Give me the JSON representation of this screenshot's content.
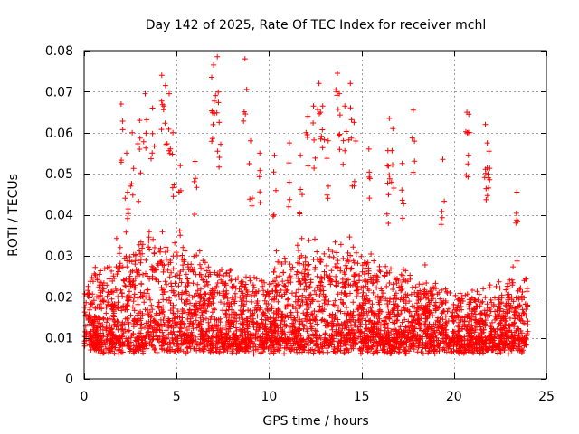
{
  "chart_data": {
    "type": "scatter",
    "title": "Day 142 of 2025, Rate Of TEC Index for receiver mchl",
    "xlabel": "GPS time / hours",
    "ylabel": "ROTI / TECUs",
    "xlim": [
      0,
      25
    ],
    "ylim": [
      0,
      0.08
    ],
    "x_ticks": [
      "0",
      "5",
      "10",
      "15",
      "20",
      "25"
    ],
    "y_ticks": [
      "0",
      "0.01",
      "0.02",
      "0.03",
      "0.04",
      "0.05",
      "0.06",
      "0.07",
      "0.08"
    ],
    "grid": true,
    "marker": "+",
    "color": "#ff0000",
    "series": [
      {
        "name": "ROTI",
        "summary": "dense band of points between 0.005 and 0.03 across 0-24 h; sporadic spikes",
        "baseline_range": [
          0.004,
          0.03
        ],
        "hour_span": [
          0,
          24
        ],
        "spikes": [
          {
            "x": 2.0,
            "y": 0.067
          },
          {
            "x": 2.3,
            "y": 0.055
          },
          {
            "x": 2.6,
            "y": 0.06
          },
          {
            "x": 3.0,
            "y": 0.063
          },
          {
            "x": 3.3,
            "y": 0.0695
          },
          {
            "x": 3.7,
            "y": 0.066
          },
          {
            "x": 4.2,
            "y": 0.074
          },
          {
            "x": 4.4,
            "y": 0.0715
          },
          {
            "x": 4.6,
            "y": 0.0695
          },
          {
            "x": 4.8,
            "y": 0.06
          },
          {
            "x": 5.2,
            "y": 0.052
          },
          {
            "x": 6.0,
            "y": 0.053
          },
          {
            "x": 6.9,
            "y": 0.0735
          },
          {
            "x": 7.0,
            "y": 0.0765
          },
          {
            "x": 7.2,
            "y": 0.0785
          },
          {
            "x": 7.3,
            "y": 0.0625
          },
          {
            "x": 8.7,
            "y": 0.078
          },
          {
            "x": 9.0,
            "y": 0.058
          },
          {
            "x": 9.5,
            "y": 0.055
          },
          {
            "x": 10.3,
            "y": 0.0545
          },
          {
            "x": 11.1,
            "y": 0.0575
          },
          {
            "x": 11.7,
            "y": 0.0545
          },
          {
            "x": 12.1,
            "y": 0.064
          },
          {
            "x": 12.4,
            "y": 0.0665
          },
          {
            "x": 12.7,
            "y": 0.072
          },
          {
            "x": 12.9,
            "y": 0.0665
          },
          {
            "x": 13.2,
            "y": 0.058
          },
          {
            "x": 13.7,
            "y": 0.0745
          },
          {
            "x": 13.8,
            "y": 0.0695
          },
          {
            "x": 14.1,
            "y": 0.0665
          },
          {
            "x": 14.4,
            "y": 0.072
          },
          {
            "x": 14.6,
            "y": 0.0625
          },
          {
            "x": 15.4,
            "y": 0.056
          },
          {
            "x": 16.4,
            "y": 0.052
          },
          {
            "x": 16.5,
            "y": 0.0635
          },
          {
            "x": 16.7,
            "y": 0.061
          },
          {
            "x": 17.2,
            "y": 0.0525
          },
          {
            "x": 17.8,
            "y": 0.0655
          },
          {
            "x": 19.4,
            "y": 0.0535
          },
          {
            "x": 20.7,
            "y": 0.065
          },
          {
            "x": 20.8,
            "y": 0.0645
          },
          {
            "x": 21.7,
            "y": 0.062
          },
          {
            "x": 21.8,
            "y": 0.0575
          },
          {
            "x": 21.9,
            "y": 0.0555
          },
          {
            "x": 23.4,
            "y": 0.0455
          }
        ]
      }
    ]
  }
}
